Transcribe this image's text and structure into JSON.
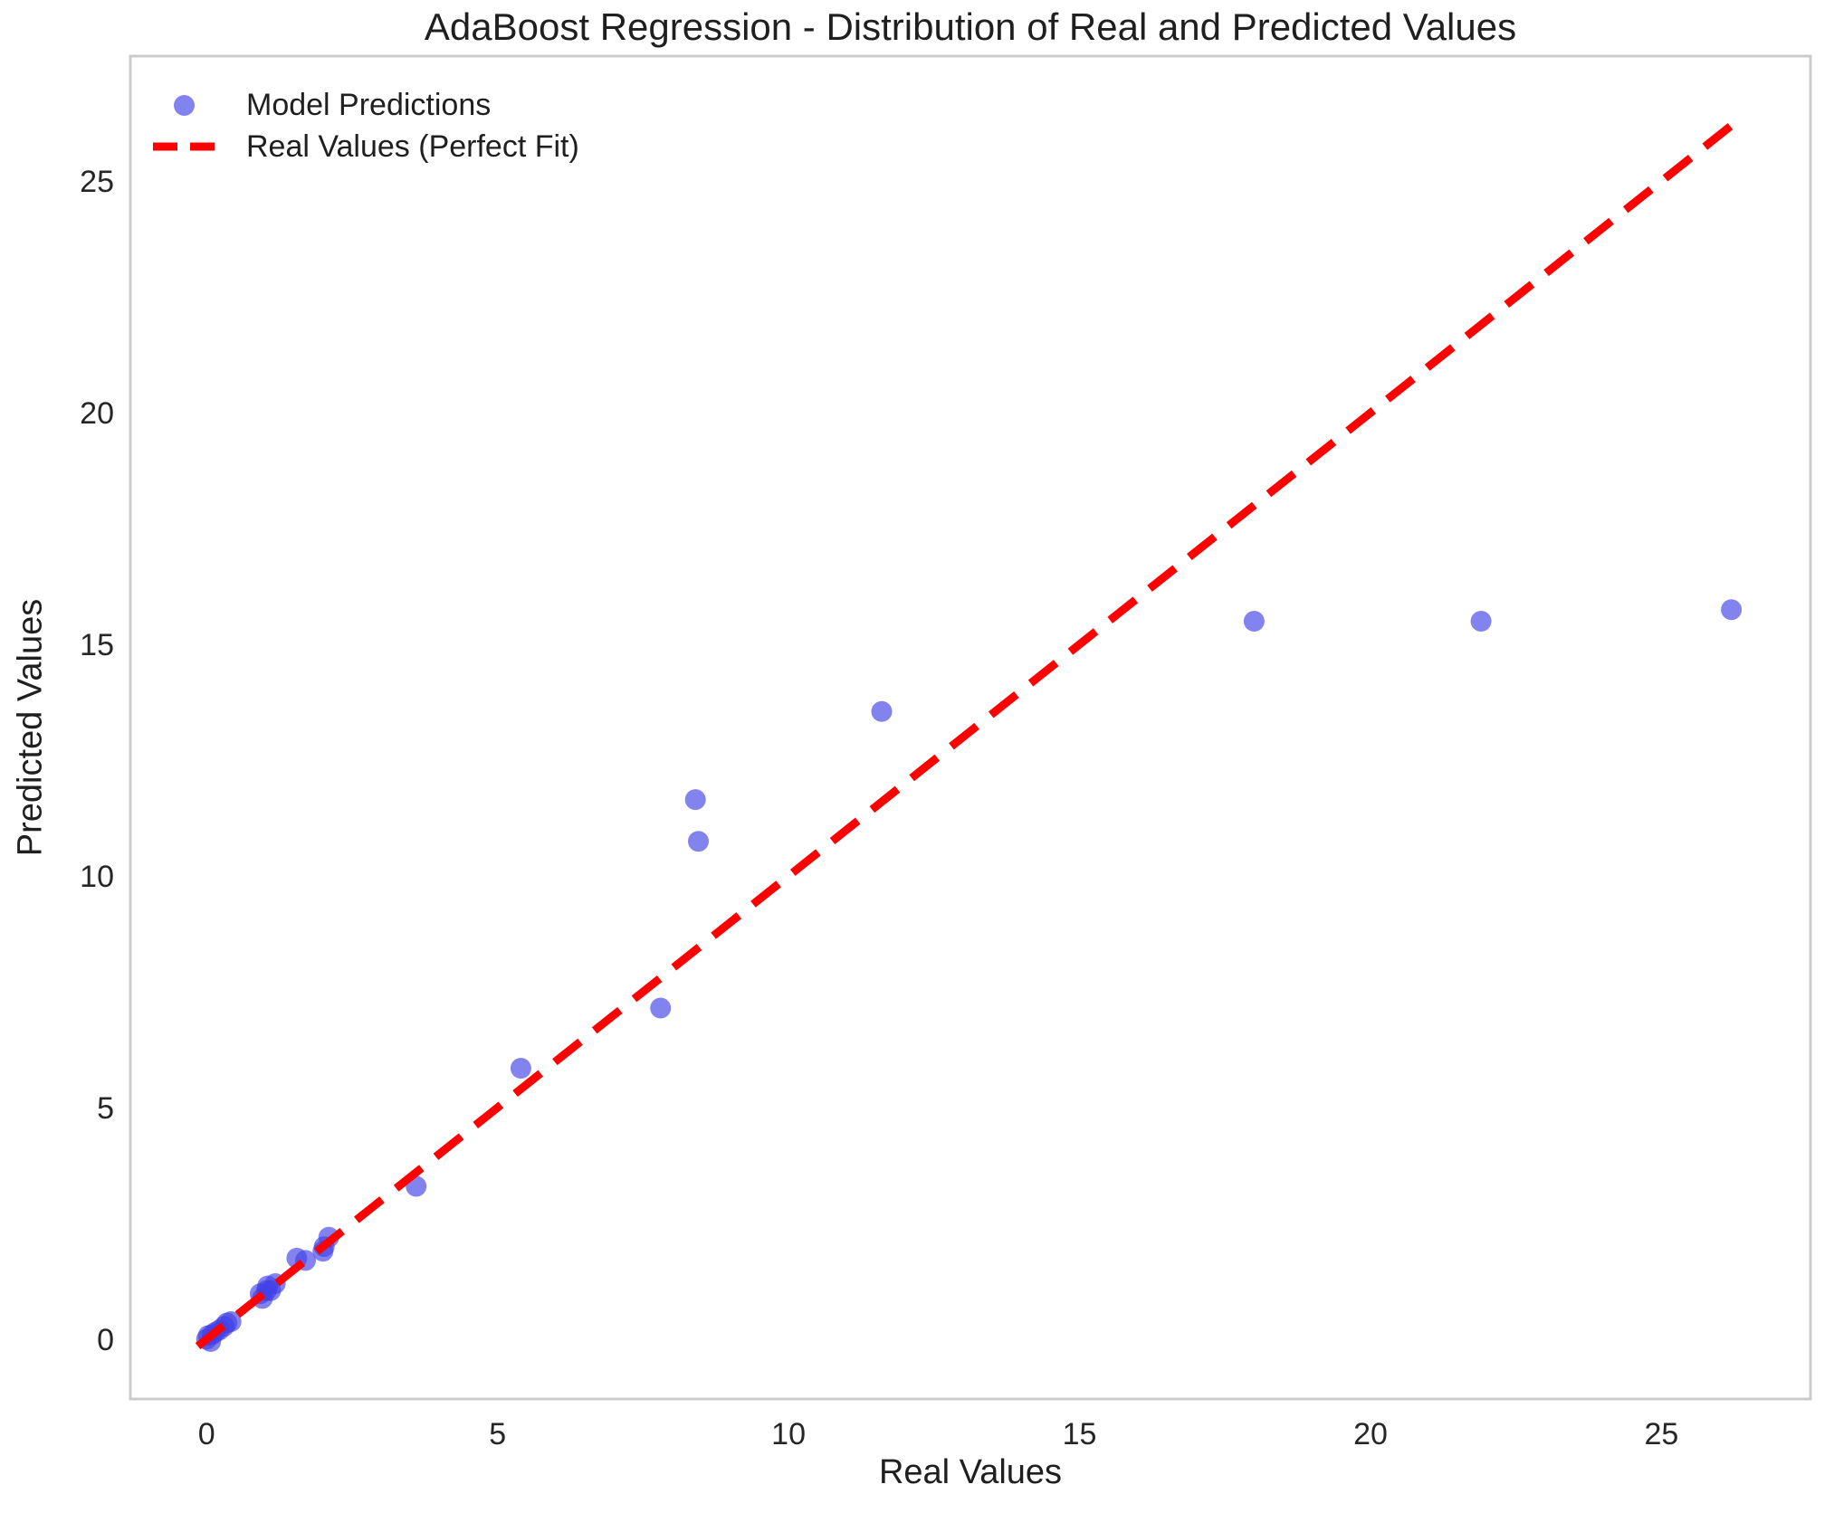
{
  "chart_data": {
    "type": "scatter",
    "title": "AdaBoost Regression - Distribution of Real and Predicted Values",
    "xlabel": "Real Values",
    "ylabel": "Predicted Values",
    "xlim": [
      -1.31,
      27.56
    ],
    "ylim": [
      -1.29,
      27.7
    ],
    "x_ticks": [
      0,
      5,
      10,
      15,
      20,
      25
    ],
    "y_ticks": [
      0,
      5,
      10,
      15,
      20,
      25
    ],
    "grid": false,
    "legend": [
      {
        "label": "Model Predictions",
        "marker": "circle"
      },
      {
        "label": "Real Values (Perfect Fit)",
        "marker": "dashed-line"
      }
    ],
    "series": [
      {
        "name": "Model Predictions",
        "type": "scatter",
        "color": "#4040e8",
        "opacity": 0.65,
        "points": [
          [
            0.0,
            0.0
          ],
          [
            0.03,
            0.08
          ],
          [
            0.07,
            -0.05
          ],
          [
            0.1,
            0.1
          ],
          [
            0.15,
            0.15
          ],
          [
            0.22,
            0.2
          ],
          [
            0.3,
            0.28
          ],
          [
            0.35,
            0.35
          ],
          [
            0.42,
            0.38
          ],
          [
            0.92,
            0.98
          ],
          [
            0.96,
            0.88
          ],
          [
            1.03,
            1.05
          ],
          [
            1.05,
            1.15
          ],
          [
            1.1,
            1.05
          ],
          [
            1.18,
            1.2
          ],
          [
            1.55,
            1.75
          ],
          [
            1.7,
            1.7
          ],
          [
            2.0,
            1.9
          ],
          [
            2.02,
            2.0
          ],
          [
            2.1,
            2.2
          ],
          [
            3.6,
            3.3
          ],
          [
            5.4,
            5.85
          ],
          [
            7.8,
            7.15
          ],
          [
            8.4,
            11.65
          ],
          [
            8.45,
            10.75
          ],
          [
            11.6,
            13.55
          ],
          [
            18.0,
            15.5
          ],
          [
            21.9,
            15.5
          ],
          [
            26.2,
            15.75
          ]
        ]
      },
      {
        "name": "Real Values (Perfect Fit)",
        "type": "line",
        "style": "dashed",
        "color": "#ff0000",
        "points": [
          [
            -0.15,
            -0.15
          ],
          [
            26.25,
            26.25
          ]
        ]
      }
    ],
    "colors": {
      "text": "#1f1f1f",
      "spine": "#cccccc",
      "background": "#ffffff",
      "point": "#4040e8",
      "line": "#ff0000"
    }
  }
}
